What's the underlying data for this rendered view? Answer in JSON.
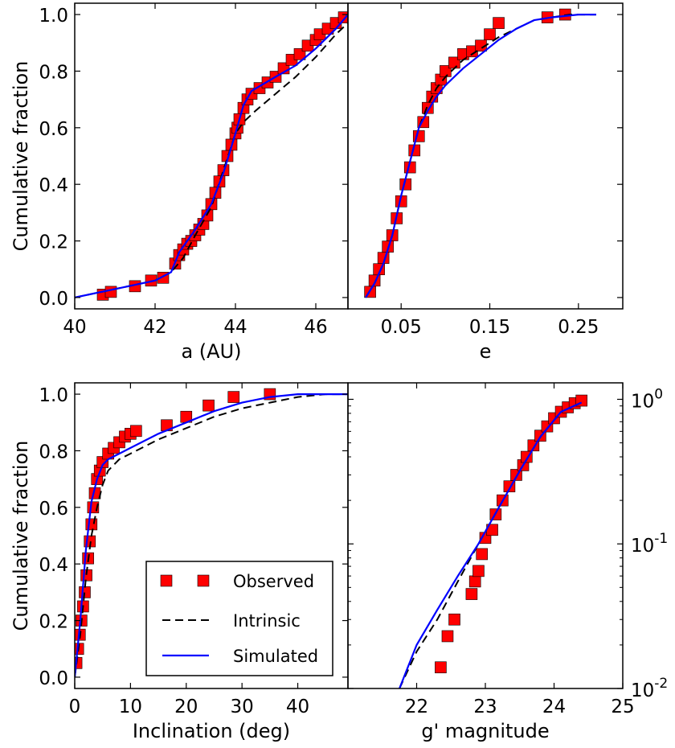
{
  "figure": {
    "legend": {
      "placement": "inside lower-right of inclination panel",
      "entries": [
        {
          "label": "Observed",
          "marker": "square",
          "color": "#ff0000"
        },
        {
          "label": "Intrinsic",
          "line": "dashed",
          "color": "#000000"
        },
        {
          "label": "Simulated",
          "line": "solid",
          "color": "#0000ff"
        }
      ]
    }
  },
  "chart_data": [
    {
      "type": "line",
      "id": "a",
      "xlabel": "a (AU)",
      "ylabel": "Cumulative fraction",
      "xlim": [
        40,
        46.8
      ],
      "ylim": [
        -0.04,
        1.04
      ],
      "xticks": [
        40,
        42,
        44,
        46
      ],
      "yticks": [
        0.0,
        0.2,
        0.4,
        0.6,
        0.8,
        1.0
      ],
      "grid": false,
      "series": [
        {
          "role": "intrinsic",
          "color": "#000000",
          "dash": true,
          "x": [
            40.0,
            41.0,
            42.0,
            42.4,
            42.7,
            43.0,
            43.4,
            43.7,
            44.0,
            44.2,
            44.5,
            45.0,
            45.5,
            46.0,
            46.5,
            46.8
          ],
          "y": [
            0.0,
            0.03,
            0.06,
            0.09,
            0.14,
            0.22,
            0.32,
            0.45,
            0.58,
            0.62,
            0.66,
            0.72,
            0.78,
            0.85,
            0.93,
            0.97
          ]
        },
        {
          "role": "simulated",
          "color": "#0000ff",
          "dash": false,
          "x": [
            40.0,
            41.0,
            42.0,
            42.4,
            42.6,
            43.0,
            43.4,
            43.7,
            44.0,
            44.2,
            44.4,
            45.0,
            45.5,
            46.0,
            46.5,
            46.8
          ],
          "y": [
            0.0,
            0.03,
            0.06,
            0.09,
            0.16,
            0.24,
            0.33,
            0.44,
            0.58,
            0.68,
            0.73,
            0.78,
            0.82,
            0.88,
            0.95,
            1.0
          ]
        },
        {
          "role": "observed",
          "color": "#ff0000",
          "marker": "square",
          "x": [
            40.7,
            40.9,
            41.5,
            41.9,
            42.2,
            42.5,
            42.6,
            42.7,
            42.8,
            42.9,
            43.0,
            43.1,
            43.2,
            43.3,
            43.4,
            43.5,
            43.6,
            43.7,
            43.8,
            43.9,
            44.0,
            44.05,
            44.1,
            44.2,
            44.3,
            44.4,
            44.6,
            44.8,
            45.0,
            45.2,
            45.4,
            45.6,
            45.8,
            46.0,
            46.1,
            46.3,
            46.5,
            46.7
          ],
          "y": [
            0.01,
            0.02,
            0.04,
            0.06,
            0.07,
            0.12,
            0.15,
            0.17,
            0.19,
            0.2,
            0.22,
            0.24,
            0.26,
            0.29,
            0.33,
            0.37,
            0.41,
            0.45,
            0.5,
            0.54,
            0.58,
            0.6,
            0.63,
            0.67,
            0.7,
            0.72,
            0.74,
            0.76,
            0.78,
            0.81,
            0.84,
            0.86,
            0.89,
            0.91,
            0.93,
            0.95,
            0.97,
            0.99
          ]
        }
      ]
    },
    {
      "type": "line",
      "id": "e",
      "xlabel": "e",
      "ylabel": "",
      "xlim": [
        -0.01,
        0.3
      ],
      "ylim": [
        -0.04,
        1.04
      ],
      "xticks": [
        0.05,
        0.15,
        0.25
      ],
      "xticklabels": [
        "0.05",
        "0.15",
        "0.25"
      ],
      "grid": false,
      "series": [
        {
          "role": "intrinsic",
          "color": "#000000",
          "dash": true,
          "x": [
            0.01,
            0.02,
            0.03,
            0.04,
            0.05,
            0.06,
            0.07,
            0.08,
            0.09,
            0.1,
            0.12,
            0.14,
            0.16,
            0.18,
            0.2,
            0.24,
            0.27
          ],
          "y": [
            0.0,
            0.05,
            0.12,
            0.22,
            0.36,
            0.48,
            0.6,
            0.68,
            0.74,
            0.78,
            0.84,
            0.88,
            0.92,
            0.95,
            0.98,
            1.0,
            1.0
          ]
        },
        {
          "role": "simulated",
          "color": "#0000ff",
          "dash": false,
          "x": [
            0.01,
            0.02,
            0.03,
            0.04,
            0.05,
            0.06,
            0.07,
            0.08,
            0.09,
            0.1,
            0.12,
            0.14,
            0.16,
            0.18,
            0.2,
            0.22,
            0.25,
            0.27
          ],
          "y": [
            0.0,
            0.05,
            0.12,
            0.22,
            0.36,
            0.48,
            0.6,
            0.66,
            0.71,
            0.75,
            0.81,
            0.86,
            0.91,
            0.95,
            0.98,
            0.99,
            1.0,
            1.0
          ]
        },
        {
          "role": "observed",
          "color": "#ff0000",
          "marker": "square",
          "x": [
            0.015,
            0.02,
            0.025,
            0.03,
            0.035,
            0.04,
            0.045,
            0.05,
            0.055,
            0.06,
            0.065,
            0.07,
            0.075,
            0.08,
            0.085,
            0.09,
            0.095,
            0.1,
            0.11,
            0.12,
            0.13,
            0.14,
            0.15,
            0.16,
            0.215,
            0.235
          ],
          "y": [
            0.02,
            0.06,
            0.1,
            0.14,
            0.18,
            0.22,
            0.28,
            0.34,
            0.4,
            0.46,
            0.52,
            0.57,
            0.62,
            0.67,
            0.71,
            0.74,
            0.77,
            0.8,
            0.83,
            0.86,
            0.87,
            0.89,
            0.93,
            0.97,
            0.99,
            1.0
          ]
        }
      ]
    },
    {
      "type": "line",
      "id": "inclination",
      "xlabel": "Inclination (deg)",
      "ylabel": "Cumulative fraction",
      "xlim": [
        0,
        49
      ],
      "ylim": [
        -0.04,
        1.04
      ],
      "xticks": [
        0,
        10,
        20,
        30,
        40
      ],
      "yticks": [
        0.0,
        0.2,
        0.4,
        0.6,
        0.8,
        1.0
      ],
      "grid": false,
      "series": [
        {
          "role": "intrinsic",
          "color": "#000000",
          "dash": true,
          "x": [
            0,
            1,
            2,
            3,
            4,
            5,
            6,
            8,
            10,
            15,
            20,
            25,
            30,
            35,
            40,
            45,
            49
          ],
          "y": [
            0.0,
            0.15,
            0.35,
            0.5,
            0.6,
            0.68,
            0.73,
            0.77,
            0.79,
            0.84,
            0.88,
            0.92,
            0.95,
            0.97,
            0.99,
            1.0,
            1.0
          ]
        },
        {
          "role": "simulated",
          "color": "#0000ff",
          "dash": false,
          "x": [
            0,
            1,
            2,
            3,
            4,
            5,
            6,
            8,
            10,
            15,
            20,
            25,
            30,
            35,
            40,
            45,
            49
          ],
          "y": [
            0.0,
            0.2,
            0.45,
            0.62,
            0.7,
            0.75,
            0.77,
            0.79,
            0.81,
            0.86,
            0.9,
            0.94,
            0.97,
            0.99,
            1.0,
            1.0,
            1.0
          ]
        },
        {
          "role": "observed",
          "color": "#ff0000",
          "marker": "square",
          "x": [
            0.3,
            0.6,
            0.9,
            1.2,
            1.5,
            1.8,
            2.1,
            2.4,
            2.7,
            3.0,
            3.3,
            3.6,
            4.0,
            4.5,
            5.0,
            6.0,
            7.0,
            8.0,
            9.0,
            10.0,
            11.0,
            16.5,
            20.0,
            24.0,
            28.5,
            35.0
          ],
          "y": [
            0.05,
            0.1,
            0.15,
            0.2,
            0.25,
            0.3,
            0.36,
            0.42,
            0.48,
            0.54,
            0.6,
            0.65,
            0.7,
            0.73,
            0.76,
            0.79,
            0.81,
            0.83,
            0.85,
            0.86,
            0.87,
            0.89,
            0.92,
            0.96,
            0.99,
            1.0
          ]
        }
      ]
    },
    {
      "type": "line",
      "id": "magnitude",
      "xlabel": "g' magnitude",
      "ylabel": "",
      "yscale": "log",
      "xlim": [
        21.0,
        25.0
      ],
      "ylim": [
        0.01,
        1.3
      ],
      "xticks": [
        22,
        23,
        24,
        25
      ],
      "yticks": [
        0.01,
        0.1,
        1.0
      ],
      "yticklabels": [
        {
          "base": "10",
          "exp": "-2"
        },
        {
          "base": "10",
          "exp": "-1"
        },
        {
          "base": "10",
          "exp": "0"
        }
      ],
      "grid": false,
      "series": [
        {
          "role": "intrinsic",
          "color": "#000000",
          "dash": true,
          "x": [
            21.75,
            22.0,
            22.3,
            22.6,
            22.9,
            23.2,
            23.5,
            23.8,
            24.1,
            24.4
          ],
          "y": [
            0.01,
            0.018,
            0.03,
            0.055,
            0.1,
            0.18,
            0.32,
            0.55,
            0.82,
            0.95
          ]
        },
        {
          "role": "simulated",
          "color": "#0000ff",
          "dash": false,
          "x": [
            21.75,
            22.0,
            22.3,
            22.6,
            22.9,
            23.2,
            23.5,
            23.8,
            24.1,
            24.4
          ],
          "y": [
            0.01,
            0.02,
            0.035,
            0.06,
            0.1,
            0.18,
            0.32,
            0.55,
            0.82,
            0.95
          ]
        },
        {
          "role": "observed",
          "color": "#ff0000",
          "marker": "square",
          "x": [
            22.35,
            22.45,
            22.55,
            22.8,
            22.85,
            22.9,
            22.95,
            23.0,
            23.1,
            23.15,
            23.25,
            23.35,
            23.45,
            23.55,
            23.6,
            23.7,
            23.8,
            23.9,
            24.0,
            24.1,
            24.2,
            24.3,
            24.4
          ],
          "y": [
            0.014,
            0.023,
            0.03,
            0.045,
            0.055,
            0.065,
            0.085,
            0.11,
            0.125,
            0.16,
            0.2,
            0.25,
            0.3,
            0.35,
            0.4,
            0.48,
            0.56,
            0.65,
            0.74,
            0.82,
            0.88,
            0.94,
            0.98
          ]
        }
      ]
    }
  ]
}
